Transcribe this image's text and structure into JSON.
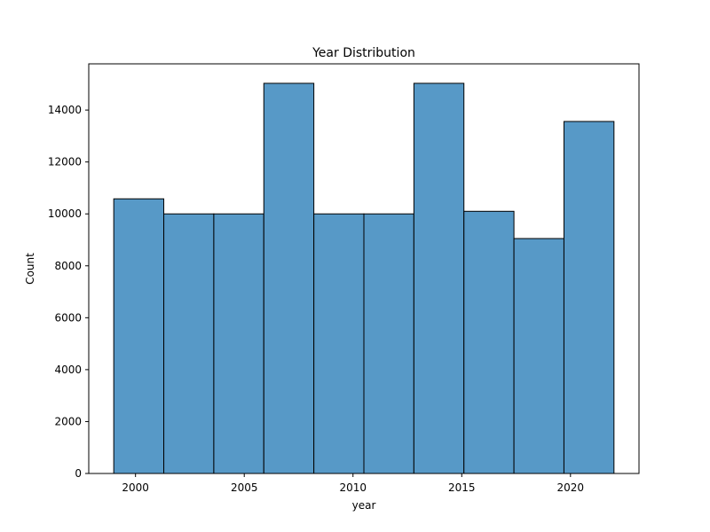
{
  "chart_data": {
    "type": "bar",
    "title": "Year Distribution",
    "xlabel": "year",
    "ylabel": "Count",
    "bins": [
      {
        "start": 1999.0,
        "end": 2001.3,
        "count": 10580
      },
      {
        "start": 2001.3,
        "end": 2003.6,
        "count": 10000
      },
      {
        "start": 2003.6,
        "end": 2005.9,
        "count": 10000
      },
      {
        "start": 2005.9,
        "end": 2008.2,
        "count": 15030
      },
      {
        "start": 2008.2,
        "end": 2010.5,
        "count": 10000
      },
      {
        "start": 2010.5,
        "end": 2012.8,
        "count": 10000
      },
      {
        "start": 2012.8,
        "end": 2015.1,
        "count": 15030
      },
      {
        "start": 2015.1,
        "end": 2017.4,
        "count": 10100
      },
      {
        "start": 2017.4,
        "end": 2019.7,
        "count": 9050
      },
      {
        "start": 2019.7,
        "end": 2022.0,
        "count": 13560
      }
    ],
    "xlim": [
      1997.85,
      2023.15
    ],
    "ylim": [
      0,
      15780
    ],
    "xticks": [
      2000,
      2005,
      2010,
      2015,
      2020
    ],
    "yticks": [
      0,
      2000,
      4000,
      6000,
      8000,
      10000,
      12000,
      14000
    ],
    "bar_color": "#5799c7",
    "edge_color": "#000000",
    "grid": false
  }
}
